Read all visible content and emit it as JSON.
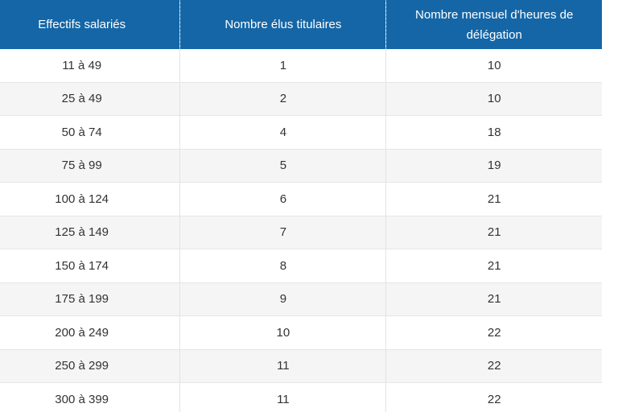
{
  "table": {
    "headers": [
      {
        "lines": [
          "Effectifs salariés"
        ]
      },
      {
        "lines": [
          "Nombre élus titulaires"
        ]
      },
      {
        "lines": [
          "Nombre mensuel d'heures de",
          "délégation"
        ]
      }
    ],
    "rows": [
      [
        "11 à 49",
        "1",
        "10"
      ],
      [
        "25 à 49",
        "2",
        "10"
      ],
      [
        "50 à 74",
        "4",
        "18"
      ],
      [
        "75 à 99",
        "5",
        "19"
      ],
      [
        "100 à 124",
        "6",
        "21"
      ],
      [
        "125 à 149",
        "7",
        "21"
      ],
      [
        "150 à 174",
        "8",
        "21"
      ],
      [
        "175 à 199",
        "9",
        "21"
      ],
      [
        "200 à 249",
        "10",
        "22"
      ],
      [
        "250 à 299",
        "11",
        "22"
      ],
      [
        "300 à 399",
        "11",
        "22"
      ]
    ]
  },
  "colors": {
    "header_bg": "#1566a6",
    "header_text": "#ffffff",
    "stripe": "#f5f5f5"
  }
}
